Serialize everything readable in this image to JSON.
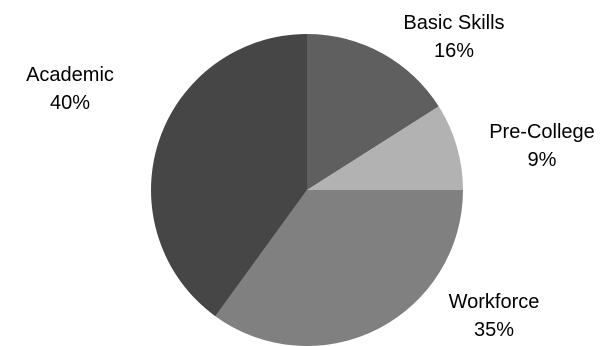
{
  "chart_data": {
    "type": "pie",
    "title": "",
    "start_angle_deg": 0,
    "direction": "clockwise",
    "slices": [
      {
        "label": "Basic Skills",
        "value": 16,
        "value_label": "16%",
        "color": "#5f5f5f"
      },
      {
        "label": "Pre-College",
        "value": 9,
        "value_label": "9%",
        "color": "#b2b2b2"
      },
      {
        "label": "Workforce",
        "value": 35,
        "value_label": "35%",
        "color": "#808080"
      },
      {
        "label": "Academic",
        "value": 40,
        "value_label": "40%",
        "color": "#464646"
      }
    ]
  }
}
